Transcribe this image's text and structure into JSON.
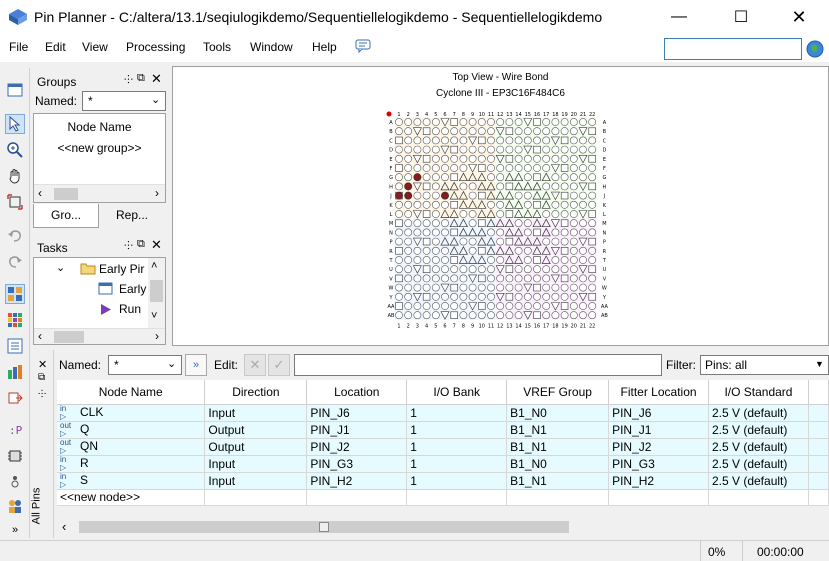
{
  "window": {
    "title": "Pin Planner - C:/altera/13.1/seqiulogikdemo/Sequentiellelogikdemo - Sequentiellelogikdemo"
  },
  "menu": {
    "items": [
      "File",
      "Edit",
      "View",
      "Processing",
      "Tools",
      "Window",
      "Help"
    ]
  },
  "groups_panel": {
    "title": "Groups",
    "named_label": "Named:",
    "named_value": "*",
    "column_header": "Node Name",
    "new_group": "<<new group>>",
    "tabs": [
      "Gro...",
      "Rep..."
    ]
  },
  "tasks_panel": {
    "title": "Tasks",
    "items": [
      "Early Pir",
      "Early",
      "Run"
    ]
  },
  "chip_view": {
    "title": "Top View - Wire Bond",
    "device": "Cyclone III - EP3C16F484C6",
    "columns": [
      "1",
      "2",
      "3",
      "4",
      "5",
      "6",
      "7",
      "8",
      "9",
      "10",
      "11",
      "12",
      "13",
      "14",
      "15",
      "16",
      "17",
      "18",
      "19",
      "20",
      "21",
      "22"
    ],
    "rows": [
      "A",
      "B",
      "C",
      "D",
      "E",
      "F",
      "G",
      "H",
      "J",
      "K",
      "L",
      "M",
      "N",
      "P",
      "R",
      "T",
      "U",
      "V",
      "W",
      "Y",
      "AA",
      "AB"
    ]
  },
  "pins_toolbar": {
    "named_label": "Named:",
    "named_value": "*",
    "edit_label": "Edit:",
    "filter_label": "Filter:",
    "filter_value": "Pins: all"
  },
  "pins_table": {
    "side_label": "All Pins",
    "columns": [
      "Node Name",
      "Direction",
      "Location",
      "I/O Bank",
      "VREF Group",
      "Fitter Location",
      "I/O Standard"
    ],
    "rows": [
      {
        "dir_icon": "in",
        "name": "CLK",
        "direction": "Input",
        "location": "PIN_J6",
        "bank": "1",
        "vref": "B1_N0",
        "fitter": "PIN_J6",
        "standard": "2.5 V (default)"
      },
      {
        "dir_icon": "out",
        "name": "Q",
        "direction": "Output",
        "location": "PIN_J1",
        "bank": "1",
        "vref": "B1_N1",
        "fitter": "PIN_J1",
        "standard": "2.5 V (default)"
      },
      {
        "dir_icon": "out",
        "name": "QN",
        "direction": "Output",
        "location": "PIN_J2",
        "bank": "1",
        "vref": "B1_N1",
        "fitter": "PIN_J2",
        "standard": "2.5 V (default)"
      },
      {
        "dir_icon": "in",
        "name": "R",
        "direction": "Input",
        "location": "PIN_G3",
        "bank": "1",
        "vref": "B1_N0",
        "fitter": "PIN_G3",
        "standard": "2.5 V (default)"
      },
      {
        "dir_icon": "in",
        "name": "S",
        "direction": "Input",
        "location": "PIN_H2",
        "bank": "1",
        "vref": "B1_N1",
        "fitter": "PIN_H2",
        "standard": "2.5 V (default)"
      }
    ],
    "new_node": "<<new node>>"
  },
  "status": {
    "progress": "0%",
    "time": "00:00:00"
  }
}
